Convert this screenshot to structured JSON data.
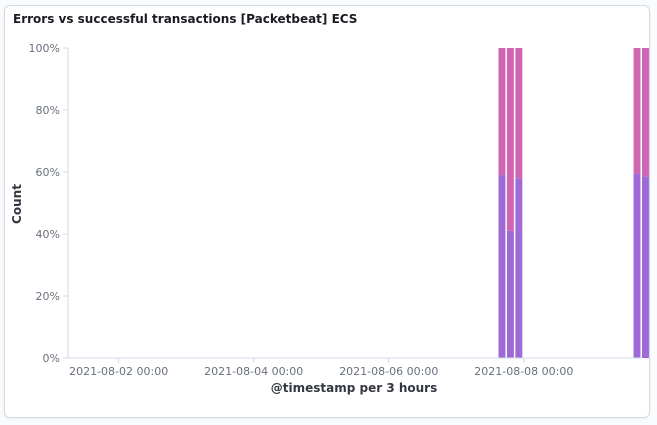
{
  "panel": {
    "title": "Errors vs successful transactions [Packetbeat] ECS"
  },
  "chart_data": {
    "type": "bar",
    "stacked": "percentage",
    "title": "",
    "xlabel": "@timestamp per 3 hours",
    "ylabel": "Count",
    "ylim": [
      0,
      100
    ],
    "y_ticks": [
      "0%",
      "20%",
      "40%",
      "60%",
      "80%",
      "100%"
    ],
    "x_ticks": [
      "2021-08-02 00:00",
      "2021-08-04 00:00",
      "2021-08-06 00:00",
      "2021-08-08 00:00"
    ],
    "x_range": [
      "2021-08-01 06:00",
      "2021-08-09 18:00"
    ],
    "grid": false,
    "legend": "none",
    "bars": [
      {
        "x": "2021-08-07 15:00",
        "bottom": 59,
        "top": 41
      },
      {
        "x": "2021-08-07 18:00",
        "bottom": 41,
        "top": 59
      },
      {
        "x": "2021-08-07 21:00",
        "bottom": 58,
        "top": 42
      },
      {
        "x": "2021-08-09 15:00",
        "bottom": 59.5,
        "top": 40.5
      },
      {
        "x": "2021-08-09 18:00",
        "bottom": 58.5,
        "top": 41.5
      }
    ],
    "colors": {
      "bottom": "#9e6ad5",
      "top": "#d066b3",
      "axis": "#d3dae6"
    }
  }
}
